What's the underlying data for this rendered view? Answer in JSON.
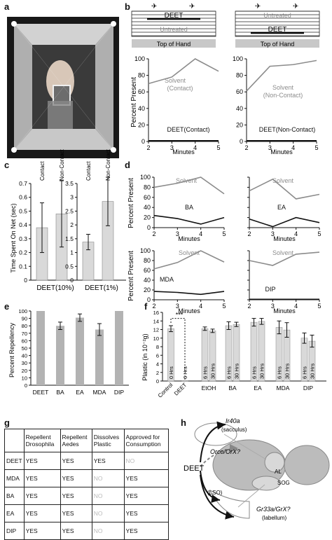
{
  "panel_labels": {
    "a": "a",
    "b": "b",
    "c": "c",
    "d": "d",
    "e": "e",
    "f": "f",
    "g": "g",
    "h": "h"
  },
  "colors": {
    "solvent": "#8c8c8c",
    "treatment": "#111111",
    "bar_fill": "#d9d9d9",
    "bar_dark": "#b3b3b3",
    "no_text": "#bbbbbb"
  },
  "panel_b": {
    "schematics": [
      {
        "top_label": "DEET",
        "bottom_label": "Untreated",
        "base_label": "Top of Hand"
      },
      {
        "top_label": "Untreated",
        "bottom_label": "DEET",
        "base_label": "Top of Hand"
      }
    ],
    "yaxis_label": "Percent Present"
  },
  "panel_c": {
    "yaxis_label": "Time Spent On Net (sec)"
  },
  "panel_d": {
    "yaxis_label": "Percent Present"
  },
  "panel_f": {
    "control_label": "Control",
    "deet_label": "DEET",
    "sig_label": "***"
  },
  "chart_data": [
    {
      "id": "b_left",
      "type": "line",
      "xlabel": "Minutes",
      "x": [
        2,
        3,
        4,
        5
      ],
      "ylim": [
        0,
        100
      ],
      "xlim": [
        2,
        5
      ],
      "yticks": [
        0,
        20,
        40,
        60,
        80,
        100
      ],
      "xticks": [
        2,
        3,
        4,
        5
      ],
      "series": [
        {
          "name": "Solvent",
          "values": [
            70,
            78,
            100,
            85
          ]
        },
        {
          "name": "DEET(Contact)",
          "values": [
            1,
            1,
            1,
            1
          ]
        }
      ],
      "annotations": [
        "Solvent",
        "(Contact)",
        "DEET(Contact)"
      ]
    },
    {
      "id": "b_right",
      "type": "line",
      "xlabel": "Minutes",
      "x": [
        2,
        3,
        4,
        5
      ],
      "ylim": [
        0,
        100
      ],
      "xlim": [
        2,
        5
      ],
      "yticks": [
        0,
        20,
        40,
        60,
        80,
        100
      ],
      "xticks": [
        2,
        3,
        4,
        5
      ],
      "series": [
        {
          "name": "Solvent",
          "values": [
            61,
            91,
            93,
            98
          ]
        },
        {
          "name": "DEET(Non-Contact)",
          "values": [
            1,
            1,
            1,
            1
          ]
        }
      ],
      "annotations": [
        "Solvent",
        "(Non-Contact)",
        "DEET(Non-Contact)"
      ]
    },
    {
      "id": "c_left",
      "type": "bar",
      "categories": [
        "Contact",
        "Non-Contact"
      ],
      "values": [
        0.38,
        0.48
      ],
      "errors": [
        0.18,
        0.24
      ],
      "ylim": [
        0,
        0.7
      ],
      "yticks": [
        0,
        0.1,
        0.2,
        0.3,
        0.4,
        0.5,
        0.6,
        0.7
      ],
      "xlabel": "DEET(10%)"
    },
    {
      "id": "c_right",
      "type": "bar",
      "categories": [
        "Contact",
        "Non-Contact"
      ],
      "values": [
        1.38,
        2.85
      ],
      "errors": [
        0.28,
        0.88
      ],
      "ylim": [
        0,
        3.5
      ],
      "yticks": [
        0,
        0.5,
        1.0,
        1.5,
        2.0,
        2.5,
        3.0,
        3.5
      ],
      "xlabel": "DEET(1%)"
    },
    {
      "id": "d_BA",
      "type": "line",
      "xlabel": "Minutes",
      "x": [
        2,
        3,
        4,
        5
      ],
      "ylim": [
        0,
        100
      ],
      "xlim": [
        2,
        5
      ],
      "yticks": [
        0,
        20,
        40,
        60,
        80,
        100
      ],
      "xticks": [
        2,
        3,
        4,
        5
      ],
      "series": [
        {
          "name": "Solvent",
          "values": [
            80,
            88,
            100,
            67
          ]
        },
        {
          "name": "BA",
          "values": [
            24,
            18,
            7,
            20
          ]
        }
      ],
      "annotations": [
        "Solvent",
        "BA"
      ]
    },
    {
      "id": "d_EA",
      "type": "line",
      "xlabel": "Minutes",
      "x": [
        2,
        3,
        4,
        5
      ],
      "ylim": [
        0,
        100
      ],
      "xlim": [
        2,
        5
      ],
      "yticks": [
        0,
        20,
        40,
        60,
        80,
        100
      ],
      "xticks": [
        2,
        3,
        4,
        5
      ],
      "series": [
        {
          "name": "Solvent",
          "values": [
            73,
            96,
            57,
            66
          ]
        },
        {
          "name": "EA",
          "values": [
            17,
            2,
            20,
            10
          ]
        }
      ],
      "annotations": [
        "Solvent",
        "EA"
      ]
    },
    {
      "id": "d_MDA",
      "type": "line",
      "xlabel": "Minutes",
      "x": [
        2,
        3,
        4,
        5
      ],
      "ylim": [
        0,
        100
      ],
      "xlim": [
        2,
        5
      ],
      "yticks": [
        0,
        20,
        40,
        60,
        80,
        100
      ],
      "xticks": [
        2,
        3,
        4,
        5
      ],
      "series": [
        {
          "name": "Solvent",
          "values": [
            63,
            76,
            100,
            77
          ]
        },
        {
          "name": "MDA",
          "values": [
            17,
            15,
            11,
            17
          ]
        }
      ],
      "annotations": [
        "Solvent",
        "MDA"
      ]
    },
    {
      "id": "d_DIP",
      "type": "line",
      "xlabel": "Minutes",
      "x": [
        2,
        3,
        4,
        5
      ],
      "ylim": [
        0,
        100
      ],
      "xlim": [
        2,
        5
      ],
      "yticks": [
        0,
        20,
        40,
        60,
        80,
        100
      ],
      "xticks": [
        2,
        3,
        4,
        5
      ],
      "series": [
        {
          "name": "Solvent",
          "values": [
            80,
            70,
            93,
            97
          ]
        },
        {
          "name": "DIP",
          "values": [
            1,
            1,
            1,
            1
          ]
        }
      ],
      "annotations": [
        "Solvent",
        "DIP"
      ]
    },
    {
      "id": "e",
      "type": "bar",
      "categories": [
        "DEET",
        "BA",
        "EA",
        "MDA",
        "DIP"
      ],
      "values": [
        100,
        80,
        91,
        75,
        100
      ],
      "errors": [
        0,
        5,
        5,
        8,
        0
      ],
      "ylim": [
        0,
        100
      ],
      "yticks": [
        0,
        10,
        20,
        30,
        40,
        50,
        60,
        70,
        80,
        90,
        100
      ],
      "ylabel": "Percent Repellency"
    },
    {
      "id": "f",
      "type": "bar",
      "ylim": [
        0,
        16
      ],
      "yticks": [
        0,
        2,
        4,
        6,
        8,
        10,
        12,
        14,
        16
      ],
      "ylabel": "Plastic (in 10⁻²g)",
      "groups": [
        "Control",
        "DEET",
        "EtOH",
        "BA",
        "EA",
        "MDA",
        "DIP"
      ],
      "bars": [
        {
          "group": "Control",
          "label": "0 Hrs",
          "value": 12.2,
          "error": 0.7
        },
        {
          "group": "DEET",
          "label": "6 Hrs",
          "value": 0.1,
          "error": 0
        },
        {
          "group": "EtOH",
          "label": "6 Hrs",
          "value": 12.2,
          "error": 0.4
        },
        {
          "group": "EtOH",
          "label": "30 Hrs",
          "value": 11.7,
          "error": 0.4
        },
        {
          "group": "BA",
          "label": "6 Hrs",
          "value": 12.9,
          "error": 0.9
        },
        {
          "group": "BA",
          "label": "30 Hrs",
          "value": 13.2,
          "error": 0.5
        },
        {
          "group": "EA",
          "label": "6 Hrs",
          "value": 13.7,
          "error": 0.9
        },
        {
          "group": "EA",
          "label": "30 Hrs",
          "value": 13.9,
          "error": 0.7
        },
        {
          "group": "MDA",
          "label": "6 Hrs",
          "value": 12.5,
          "error": 1.5
        },
        {
          "group": "MDA",
          "label": "30 Hrs",
          "value": 11.9,
          "error": 1.7
        },
        {
          "group": "DIP",
          "label": "6 Hrs",
          "value": 10.0,
          "error": 1.2
        },
        {
          "group": "DIP",
          "label": "30 Hrs",
          "value": 9.3,
          "error": 1.4
        }
      ],
      "annotations": [
        "***"
      ]
    },
    {
      "id": "g",
      "type": "table",
      "columns": [
        "",
        "Repellent Drosophila",
        "Repellent Aedes",
        "Dissolves Plastic",
        "Approved for Consumption"
      ],
      "rows": [
        [
          "DEET",
          "YES",
          "YES",
          "YES",
          "NO"
        ],
        [
          "MDA",
          "YES",
          "YES",
          "NO",
          "YES"
        ],
        [
          "BA",
          "YES",
          "YES",
          "NO",
          "YES"
        ],
        [
          "EA",
          "YES",
          "YES",
          "NO",
          "YES"
        ],
        [
          "DIP",
          "YES",
          "YES",
          "NO",
          "YES"
        ]
      ]
    }
  ],
  "panel_h": {
    "source": "DEET",
    "labels": [
      "Ir40a",
      "(sacculus)",
      "Orco/OrX?",
      "AL",
      "SOG",
      "(LSO)",
      "Gr33a/GrX?",
      "(labellum)"
    ]
  }
}
